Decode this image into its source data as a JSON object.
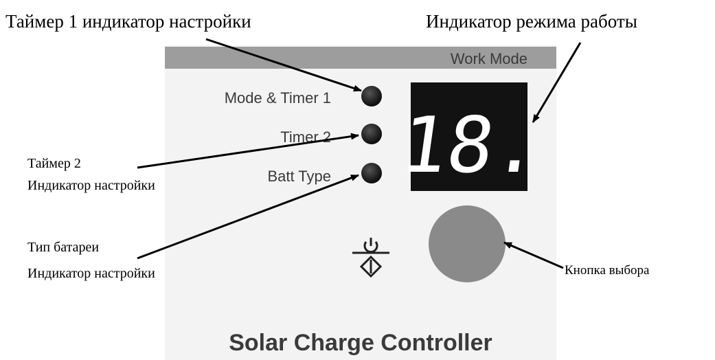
{
  "annotations": {
    "timer1": "Таймер 1 индикатор настройки",
    "work_mode": "Индикатор режима работы",
    "timer2": [
      "Таймер 2",
      "Индикатор настройки"
    ],
    "batt_type": [
      "Тип батареи",
      "Индикатор настройки"
    ],
    "button": "Кнопка выбора"
  },
  "panel": {
    "header": "Work Mode",
    "indicators": [
      "Mode & Timer 1",
      "Timer 2",
      "Batt Type"
    ],
    "display": "18.",
    "title": "Solar Charge Controller"
  }
}
